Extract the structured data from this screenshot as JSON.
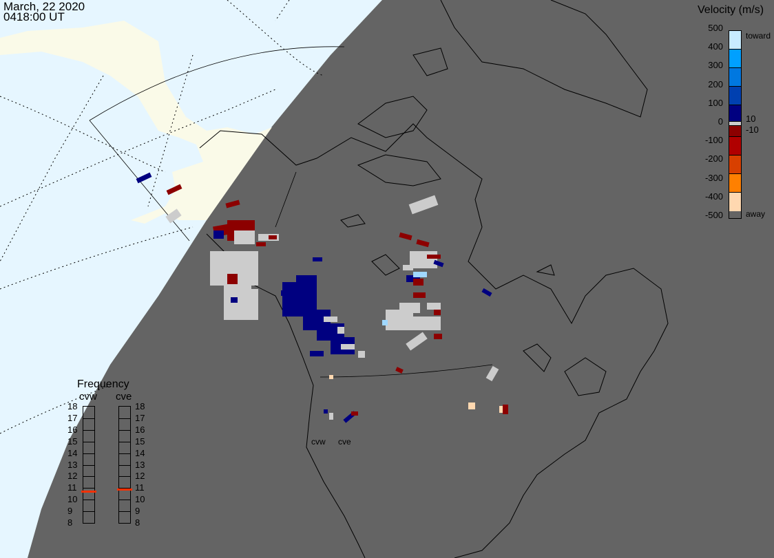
{
  "header": {
    "date": "March, 22 2020",
    "time": "0418:00 UT"
  },
  "velocity_legend": {
    "title": "Velocity (m/s)",
    "ticks": [
      "500",
      "400",
      "300",
      "200",
      "100",
      "0",
      "-100",
      "-200",
      "-300",
      "-400",
      "-500"
    ],
    "toward_label": "toward",
    "away_label": "away",
    "pos_threshold": "10",
    "neg_threshold": "-10",
    "colors": [
      "#c8ecff",
      "#00a0ff",
      "#0078e0",
      "#0040b0",
      "#000080",
      "#cccccc",
      "#8c0000",
      "#b00000",
      "#d84000",
      "#ff8000",
      "#ffd8b0"
    ]
  },
  "frequency_panel": {
    "title": "Frequency",
    "radars": [
      {
        "name": "cvw",
        "frequency_mhz": 10.7
      },
      {
        "name": "cve",
        "frequency_mhz": 10.9
      }
    ],
    "ticks": [
      "18",
      "17",
      "16",
      "15",
      "14",
      "13",
      "12",
      "11",
      "10",
      "9",
      "8"
    ],
    "marker_color": "#ff3000"
  },
  "map": {
    "day_color": "#e6f6ff",
    "day_land_color": "#fafae8",
    "night_color": "#646464",
    "radar_labels": [
      "cvw",
      "cve"
    ]
  }
}
